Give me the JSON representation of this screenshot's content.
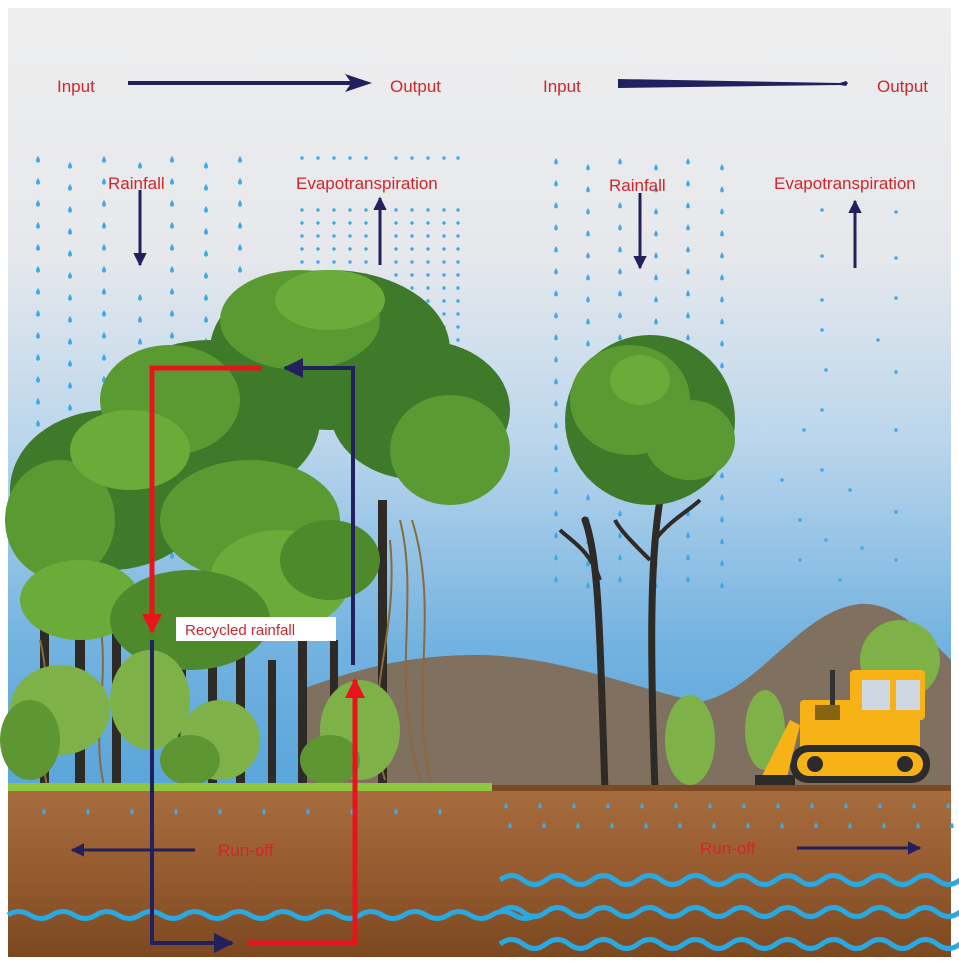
{
  "left_panel": {
    "input_label": "Input",
    "output_label": "Output",
    "rainfall_label": "Rainfall",
    "evapotranspiration_label": "Evapotranspiration",
    "recycled_rainfall_label": "Recycled rainfall",
    "runoff_label": "Run-off"
  },
  "right_panel": {
    "input_label": "Input",
    "output_label": "Output",
    "rainfall_label": "Rainfall",
    "evapotranspiration_label": "Evapotranspiration",
    "runoff_label": "Run-off"
  },
  "colors": {
    "label_red": "#d1262b",
    "arrow_navy": "#23205e",
    "cycle_red": "#e8141c",
    "raindrop_blue": "#3fa9e8",
    "groundwater_blue": "#29a9e0",
    "forest_grass": "#8dc63f",
    "soil_brown": "#9a6236",
    "hill_brown": "#80705f",
    "bulldozer_yellow": "#f7b316"
  },
  "icons": {
    "bulldozer": "bulldozer-icon"
  }
}
